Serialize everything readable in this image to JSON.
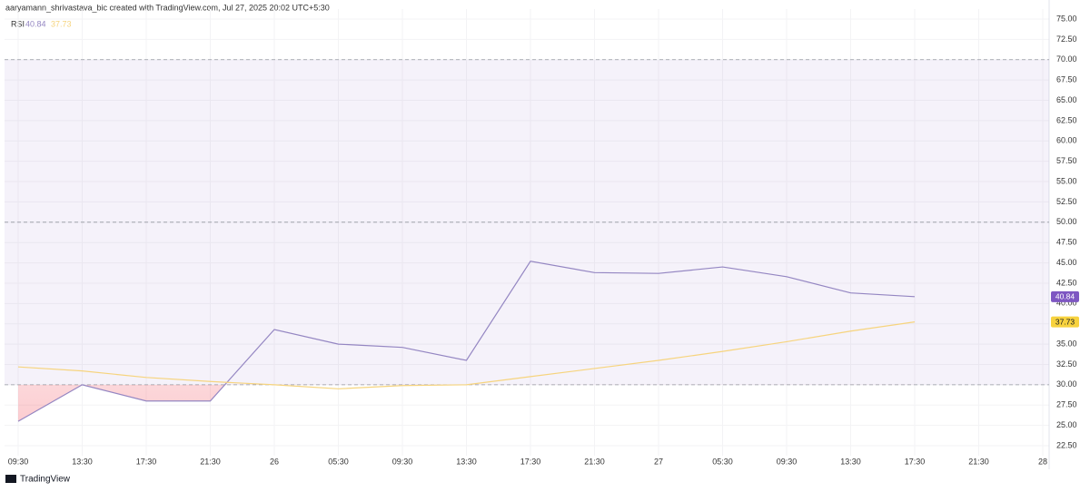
{
  "header": {
    "attribution": "aaryamann_shrivastava_bic created with TradingView.com, Jul 27, 2025 20:02 UTC+5:30"
  },
  "footer": {
    "brand": "TradingView"
  },
  "chart_data": {
    "type": "line",
    "indicator": "RSI",
    "categories": [
      "09:30",
      "13:30",
      "17:30",
      "21:30",
      "26",
      "05:30",
      "09:30",
      "13:30",
      "17:30",
      "21:30",
      "27",
      "05:30",
      "09:30",
      "13:30",
      "17:30",
      "21:30",
      "28"
    ],
    "series": [
      {
        "color": "#9486c2",
        "values": [
          25.5,
          30,
          28,
          28,
          36.8,
          35,
          34.6,
          33,
          45.2,
          43.8,
          43.7,
          44.5,
          43.3,
          41.3,
          40.84,
          null,
          null
        ]
      },
      {
        "color": "#f6d47e",
        "values": [
          32.2,
          31.7,
          30.9,
          30.4,
          30,
          29.5,
          29.9,
          30,
          31,
          32,
          33,
          34.1,
          35.3,
          36.6,
          37.73,
          null,
          null
        ]
      }
    ],
    "bands": {
      "upper": 70,
      "middle": 50,
      "lower": 30,
      "fill": "#7e57c2"
    },
    "ylim": [
      22.5,
      75
    ],
    "yticks": [
      {
        "value": 22.5,
        "label": "22.50"
      },
      {
        "value": 25,
        "label": "25.00"
      },
      {
        "value": 27.5,
        "label": "27.50"
      },
      {
        "value": 30,
        "label": "30.00"
      },
      {
        "value": 32.5,
        "label": "32.50"
      },
      {
        "value": 35,
        "label": "35.00"
      },
      {
        "value": 37.5,
        "label": "37.50"
      },
      {
        "value": 40,
        "label": "40.00"
      },
      {
        "value": 42.5,
        "label": "42.50"
      },
      {
        "value": 45,
        "label": "45.00"
      },
      {
        "value": 47.5,
        "label": "47.50"
      },
      {
        "value": 50,
        "label": "50.00"
      },
      {
        "value": 52.5,
        "label": "52.50"
      },
      {
        "value": 55,
        "label": "55.00"
      },
      {
        "value": 57.5,
        "label": "57.50"
      },
      {
        "value": 60,
        "label": "60.00"
      },
      {
        "value": 62.5,
        "label": "62.50"
      },
      {
        "value": 65,
        "label": "65.00"
      },
      {
        "value": 67.5,
        "label": "67.50"
      },
      {
        "value": 70,
        "label": "70.00"
      },
      {
        "value": 72.5,
        "label": "72.50"
      },
      {
        "value": 75,
        "label": "75.00"
      }
    ],
    "grid": true
  }
}
